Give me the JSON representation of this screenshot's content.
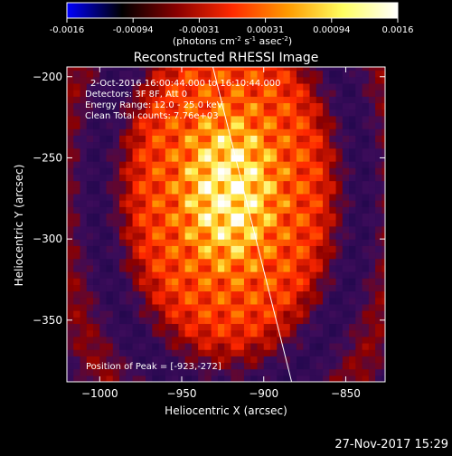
{
  "colorbar": {
    "ticks": [
      "-0.0016",
      "-0.00094",
      "-0.00031",
      "0.00031",
      "0.00094",
      "0.0016"
    ],
    "unit_label": "(photons cm",
    "unit_sup1": "-2",
    "unit_mid1": " s",
    "unit_sup2": "-1",
    "unit_mid2": " asec",
    "unit_sup3": "-2",
    "unit_end": ")",
    "colormap": [
      "#0000ff",
      "#000000",
      "#8a0000",
      "#ff2a00",
      "#ff9a00",
      "#ffff60",
      "#ffffff"
    ]
  },
  "footer": {
    "timestamp": "27-Nov-2017 15:29"
  },
  "chart_data": {
    "type": "heatmap",
    "title": "Reconstructed RHESSI Image",
    "xlabel": "Heliocentric X (arcsec)",
    "ylabel": "Heliocentric Y (arcsec)",
    "xlim": [
      -1020,
      -826
    ],
    "ylim": [
      -388,
      -194
    ],
    "x_ticks": [
      -1000,
      -950,
      -900,
      -850
    ],
    "y_ticks": [
      -350,
      -300,
      -250,
      -200
    ],
    "x_tick_labels": [
      "−1000",
      "−950",
      "−900",
      "−850"
    ],
    "y_tick_labels": [
      "−350",
      "−300",
      "−250",
      "−200"
    ],
    "annotations": [
      "2-Oct-2016 16:00:44.000 to 16:10:44.000",
      "Detectors: 3F 8F, Att 0",
      "Energy Range: 12.0 - 25.0 keV",
      "Clean     Total counts: 7.76e+03"
    ],
    "peak_label": "Position of Peak = [-923,-272]",
    "peak": [
      -923,
      -272
    ],
    "limb_line": [
      [
        -931,
        -194
      ],
      [
        -883,
        -388
      ]
    ],
    "colorbar_range": [
      -0.0016,
      0.0016
    ]
  }
}
